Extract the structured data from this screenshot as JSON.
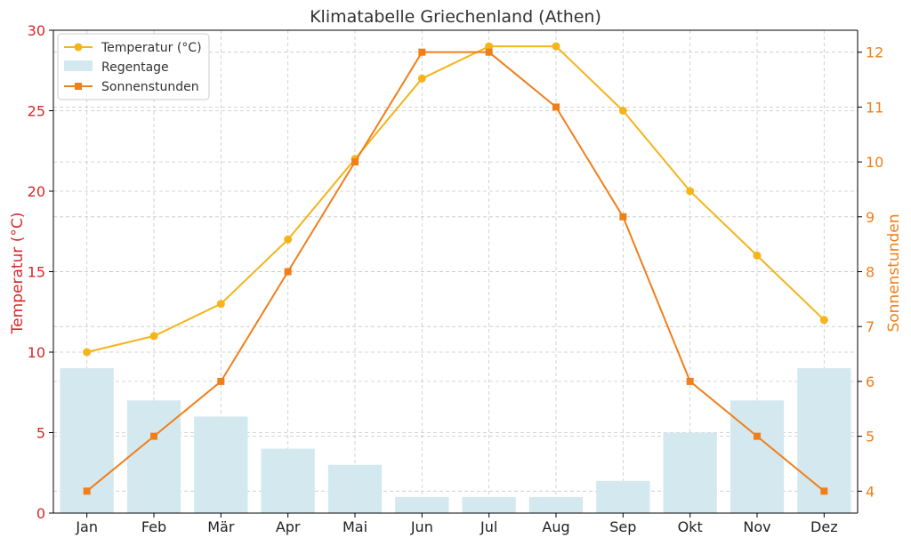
{
  "chart_data": {
    "type": "bar",
    "title": "Klimatabelle Griechenland (Athen)",
    "categories": [
      "Jan",
      "Feb",
      "Mär",
      "Apr",
      "Mai",
      "Jun",
      "Jul",
      "Aug",
      "Sep",
      "Okt",
      "Nov",
      "Dez"
    ],
    "ylabel": "Temperatur (°C)",
    "y2label": "Sonnenstunden",
    "ylim": [
      0,
      30
    ],
    "y2lim": [
      3.6,
      12.4
    ],
    "yticks": [
      "0",
      "5",
      "10",
      "15",
      "20",
      "25",
      "30"
    ],
    "y2ticks": [
      "4",
      "5",
      "6",
      "7",
      "8",
      "9",
      "10",
      "11",
      "12"
    ],
    "grid": true,
    "legend_position": "top-left",
    "series": [
      {
        "name": "Temperatur (°C)",
        "type": "line",
        "axis": "left",
        "marker": "circle",
        "color": "#f4b41a",
        "values": [
          10,
          11,
          13,
          17,
          22,
          27,
          29,
          29,
          25,
          20,
          16,
          12
        ]
      },
      {
        "name": "Regentage",
        "type": "bar",
        "axis": "left",
        "color": "#d4e8f0",
        "values": [
          9,
          7,
          6,
          4,
          3,
          1,
          1,
          1,
          2,
          5,
          7,
          9
        ]
      },
      {
        "name": "Sonnenstunden",
        "type": "line",
        "axis": "right",
        "marker": "square",
        "color": "#f07f1a",
        "values": [
          4,
          5,
          6,
          8,
          10,
          12,
          12,
          11,
          9,
          6,
          5,
          4
        ]
      }
    ],
    "colors": {
      "left_axis": "#d62728",
      "right_axis": "#f07f1a",
      "grid": "#c8c8c8",
      "text": "#333333"
    }
  }
}
